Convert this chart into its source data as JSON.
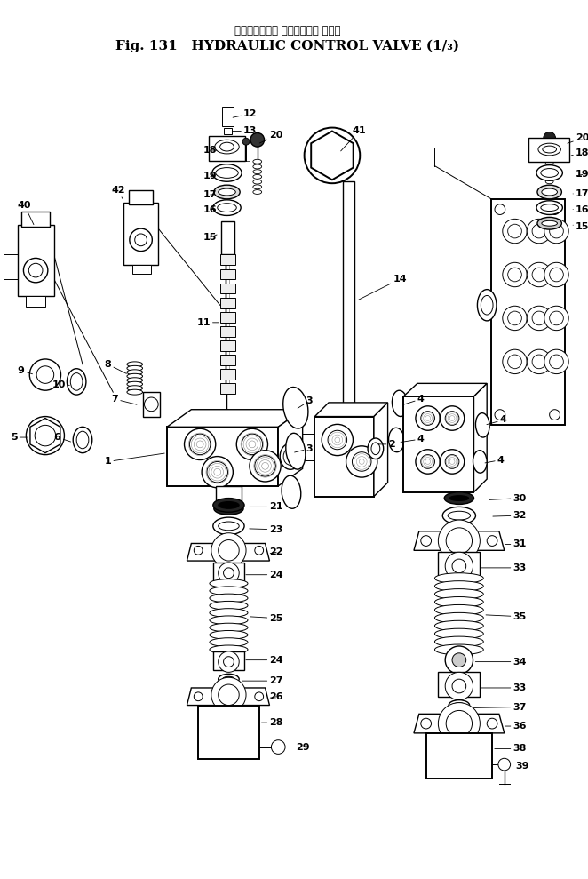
{
  "title_japanese": "ハイドロリック コントロール バルブ",
  "title_english": "Fig. 131   HYDRAULIC CONTROL VALVE (1/₃)",
  "background_color": "#ffffff",
  "line_color": "#000000",
  "figsize": [
    6.62,
    9.89
  ],
  "dpi": 100
}
